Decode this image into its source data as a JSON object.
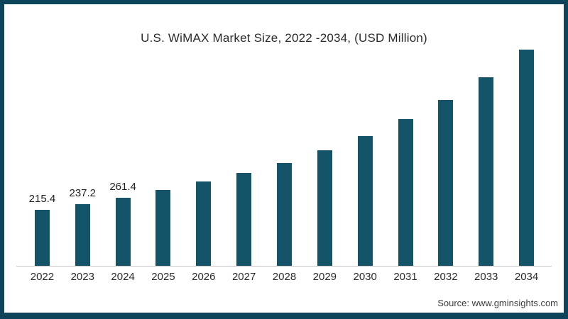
{
  "colors": {
    "bar": "#135468",
    "frame_border": "#0e4459",
    "axis_line": "#c6c6c6",
    "title_text": "#2b2b2b",
    "tick_text": "#2b2b2b",
    "label_text": "#1f1f1f",
    "source_text": "#3c3c3c"
  },
  "source_credit": "Source: www.gminsights.com",
  "chart_data": {
    "type": "bar",
    "title": "U.S. WiMAX Market Size, 2022 -2034, (USD Million)",
    "categories": [
      "2022",
      "2023",
      "2024",
      "2025",
      "2026",
      "2027",
      "2028",
      "2029",
      "2030",
      "2031",
      "2032",
      "2033",
      "2034"
    ],
    "values": [
      215.4,
      237.2,
      261.4,
      290,
      322,
      355,
      393,
      442,
      496,
      561,
      635,
      722,
      827
    ],
    "data_labels": [
      "215.4",
      "237.2",
      "261.4",
      "",
      "",
      "",
      "",
      "",
      "",
      "",
      "",
      "",
      ""
    ],
    "xlabel": "",
    "ylabel": "",
    "ylim": [
      0,
      850
    ],
    "grid": false,
    "legend": "none",
    "bar_color": "#135468"
  }
}
